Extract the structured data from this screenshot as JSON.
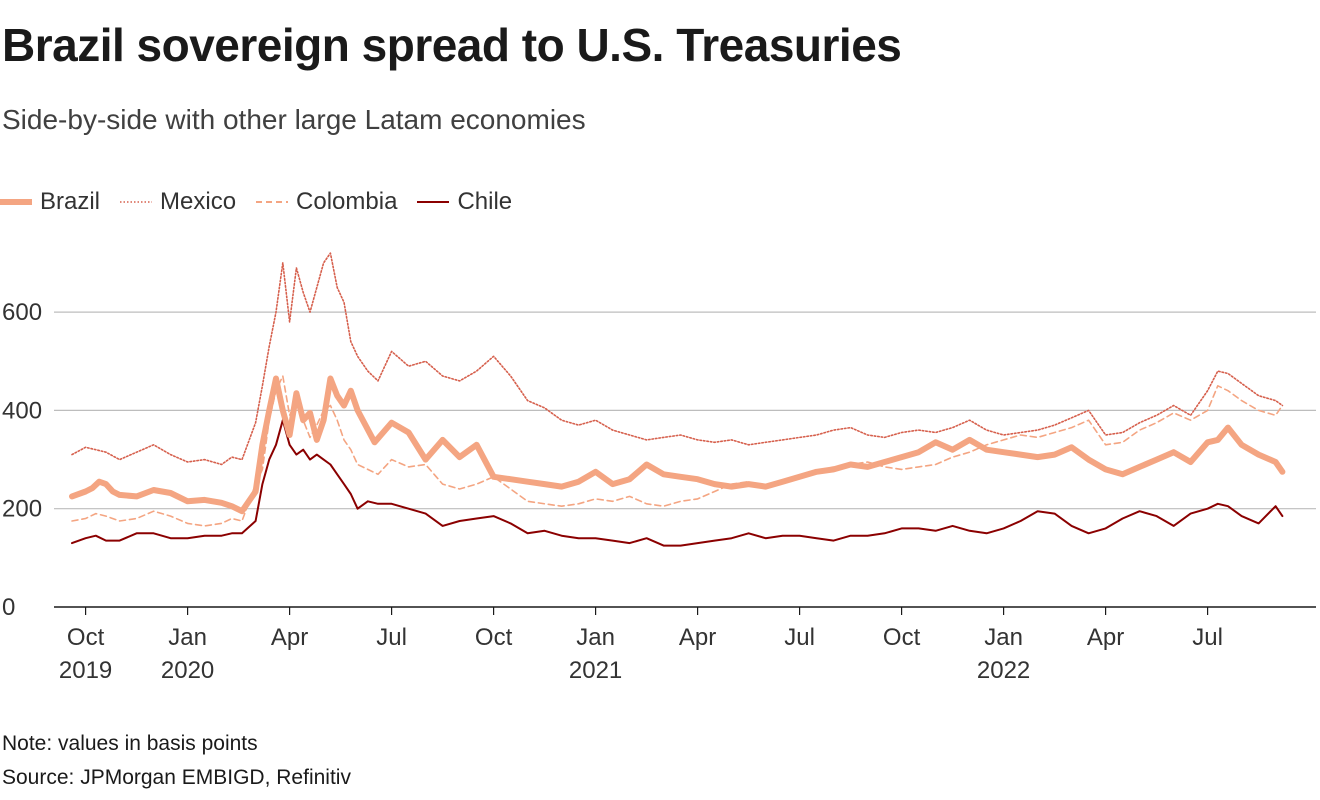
{
  "chart_data": {
    "type": "line",
    "title": "Brazil sovereign spread to U.S. Treasuries",
    "subtitle": "Side-by-side with other large Latam economies",
    "xlabel": "",
    "ylabel": "",
    "ylim": [
      0,
      700
    ],
    "yticks": [
      0,
      200,
      400,
      600
    ],
    "grid": true,
    "legend_position": "top-left",
    "x_ticks": [
      {
        "t": 0,
        "month": "Oct",
        "year": "2019"
      },
      {
        "t": 3,
        "month": "Jan",
        "year": "2020"
      },
      {
        "t": 6,
        "month": "Apr",
        "year": ""
      },
      {
        "t": 9,
        "month": "Jul",
        "year": ""
      },
      {
        "t": 12,
        "month": "Oct",
        "year": ""
      },
      {
        "t": 15,
        "month": "Jan",
        "year": "2021"
      },
      {
        "t": 18,
        "month": "Apr",
        "year": ""
      },
      {
        "t": 21,
        "month": "Jul",
        "year": ""
      },
      {
        "t": 24,
        "month": "Oct",
        "year": ""
      },
      {
        "t": 27,
        "month": "Jan",
        "year": "2022"
      },
      {
        "t": 30,
        "month": "Apr",
        "year": ""
      },
      {
        "t": 33,
        "month": "Jul",
        "year": ""
      }
    ],
    "x_unit": "months since Oct 2019",
    "x_range": [
      -0.4,
      35.6
    ],
    "series": [
      {
        "name": "Brazil",
        "color": "#f4a582",
        "style": "thick",
        "x": [
          -0.4,
          0,
          0.2,
          0.4,
          0.6,
          0.8,
          1,
          1.5,
          2,
          2.5,
          3,
          3.5,
          4,
          4.3,
          4.6,
          4.8,
          5,
          5.2,
          5.4,
          5.6,
          5.8,
          6,
          6.2,
          6.4,
          6.6,
          6.8,
          7,
          7.2,
          7.4,
          7.6,
          7.8,
          8,
          8.5,
          9,
          9.5,
          10,
          10.5,
          11,
          11.5,
          12,
          12.5,
          13,
          13.5,
          14,
          14.5,
          15,
          15.5,
          16,
          16.5,
          17,
          17.5,
          18,
          18.5,
          19,
          19.5,
          20,
          20.5,
          21,
          21.5,
          22,
          22.5,
          23,
          23.5,
          24,
          24.5,
          25,
          25.5,
          26,
          26.5,
          27,
          27.5,
          28,
          28.5,
          29,
          29.5,
          30,
          30.5,
          31,
          31.5,
          32,
          32.5,
          33,
          33.3,
          33.6,
          34,
          34.5,
          35,
          35.2
        ],
        "values": [
          225,
          235,
          242,
          255,
          250,
          235,
          228,
          225,
          238,
          232,
          215,
          218,
          212,
          205,
          195,
          215,
          235,
          330,
          400,
          465,
          400,
          350,
          435,
          380,
          395,
          340,
          380,
          465,
          430,
          410,
          440,
          400,
          335,
          375,
          355,
          300,
          340,
          305,
          330,
          265,
          260,
          255,
          250,
          245,
          255,
          275,
          250,
          260,
          290,
          270,
          265,
          260,
          250,
          245,
          250,
          245,
          255,
          265,
          275,
          280,
          290,
          285,
          295,
          305,
          315,
          335,
          320,
          340,
          320,
          315,
          310,
          305,
          310,
          325,
          300,
          280,
          270,
          285,
          300,
          315,
          295,
          335,
          340,
          365,
          330,
          310,
          295,
          275
        ]
      },
      {
        "name": "Mexico",
        "color": "#d6604d",
        "style": "dotted",
        "x": [
          -0.4,
          0,
          0.3,
          0.6,
          1,
          1.5,
          2,
          2.5,
          3,
          3.5,
          4,
          4.3,
          4.6,
          5,
          5.2,
          5.4,
          5.6,
          5.8,
          6,
          6.2,
          6.4,
          6.6,
          6.8,
          7,
          7.2,
          7.4,
          7.6,
          7.8,
          8,
          8.3,
          8.6,
          9,
          9.5,
          10,
          10.5,
          11,
          11.5,
          12,
          12.5,
          13,
          13.5,
          14,
          14.5,
          15,
          15.5,
          16,
          16.5,
          17,
          17.5,
          18,
          18.5,
          19,
          19.5,
          20,
          20.5,
          21,
          21.5,
          22,
          22.5,
          23,
          23.5,
          24,
          24.5,
          25,
          25.5,
          26,
          26.5,
          27,
          27.5,
          28,
          28.5,
          29,
          29.5,
          30,
          30.5,
          31,
          31.5,
          32,
          32.5,
          33,
          33.3,
          33.6,
          34,
          34.5,
          35,
          35.2
        ],
        "values": [
          310,
          325,
          320,
          315,
          300,
          315,
          330,
          310,
          295,
          300,
          290,
          305,
          300,
          375,
          450,
          530,
          600,
          700,
          580,
          690,
          640,
          600,
          650,
          700,
          720,
          650,
          620,
          540,
          510,
          480,
          460,
          520,
          490,
          500,
          470,
          460,
          480,
          510,
          470,
          420,
          405,
          380,
          370,
          380,
          360,
          350,
          340,
          345,
          350,
          340,
          335,
          340,
          330,
          335,
          340,
          345,
          350,
          360,
          365,
          350,
          345,
          355,
          360,
          355,
          365,
          380,
          360,
          350,
          355,
          360,
          370,
          385,
          400,
          350,
          355,
          375,
          390,
          410,
          390,
          440,
          480,
          475,
          455,
          430,
          420,
          410
        ]
      },
      {
        "name": "Colombia",
        "color": "#f4a582",
        "style": "dashed",
        "x": [
          -0.4,
          0,
          0.3,
          0.6,
          1,
          1.5,
          2,
          2.5,
          3,
          3.5,
          4,
          4.3,
          4.6,
          5,
          5.2,
          5.4,
          5.6,
          5.8,
          6,
          6.2,
          6.4,
          6.6,
          6.8,
          7,
          7.2,
          7.4,
          7.6,
          7.8,
          8,
          8.3,
          8.6,
          9,
          9.5,
          10,
          10.5,
          11,
          11.5,
          12,
          12.5,
          13,
          13.5,
          14,
          14.5,
          15,
          15.5,
          16,
          16.5,
          17,
          17.5,
          18,
          18.5,
          19,
          19.5,
          20,
          20.5,
          21,
          21.5,
          22,
          22.5,
          23,
          23.5,
          24,
          24.5,
          25,
          25.5,
          26,
          26.5,
          27,
          27.5,
          28,
          28.5,
          29,
          29.5,
          30,
          30.5,
          31,
          31.5,
          32,
          32.5,
          33,
          33.3,
          33.6,
          34,
          34.5,
          35,
          35.2
        ],
        "values": [
          175,
          180,
          190,
          185,
          175,
          180,
          195,
          185,
          170,
          165,
          170,
          180,
          175,
          250,
          280,
          380,
          440,
          470,
          390,
          420,
          380,
          345,
          370,
          400,
          410,
          380,
          340,
          320,
          290,
          280,
          270,
          300,
          285,
          290,
          250,
          240,
          250,
          265,
          240,
          215,
          210,
          205,
          210,
          220,
          215,
          225,
          210,
          205,
          215,
          220,
          235,
          250,
          255,
          245,
          255,
          265,
          275,
          285,
          290,
          295,
          285,
          280,
          285,
          290,
          305,
          315,
          330,
          340,
          350,
          345,
          355,
          365,
          380,
          330,
          335,
          360,
          375,
          395,
          380,
          400,
          450,
          440,
          420,
          400,
          390,
          410
        ]
      },
      {
        "name": "Chile",
        "color": "#8b0000",
        "style": "solid",
        "x": [
          -0.4,
          0,
          0.3,
          0.6,
          1,
          1.5,
          2,
          2.5,
          3,
          3.5,
          4,
          4.3,
          4.6,
          5,
          5.2,
          5.4,
          5.6,
          5.8,
          6,
          6.2,
          6.4,
          6.6,
          6.8,
          7,
          7.2,
          7.4,
          7.6,
          7.8,
          8,
          8.3,
          8.6,
          9,
          9.5,
          10,
          10.5,
          11,
          11.5,
          12,
          12.5,
          13,
          13.5,
          14,
          14.5,
          15,
          15.5,
          16,
          16.5,
          17,
          17.5,
          18,
          18.5,
          19,
          19.5,
          20,
          20.5,
          21,
          21.5,
          22,
          22.5,
          23,
          23.5,
          24,
          24.5,
          25,
          25.5,
          26,
          26.5,
          27,
          27.5,
          28,
          28.5,
          29,
          29.5,
          30,
          30.5,
          31,
          31.5,
          32,
          32.5,
          33,
          33.3,
          33.6,
          34,
          34.5,
          35,
          35.2
        ],
        "values": [
          130,
          140,
          145,
          135,
          135,
          150,
          150,
          140,
          140,
          145,
          145,
          150,
          150,
          175,
          250,
          300,
          330,
          380,
          330,
          310,
          320,
          300,
          310,
          300,
          290,
          270,
          250,
          230,
          200,
          215,
          210,
          210,
          200,
          190,
          165,
          175,
          180,
          185,
          170,
          150,
          155,
          145,
          140,
          140,
          135,
          130,
          140,
          125,
          125,
          130,
          135,
          140,
          150,
          140,
          145,
          145,
          140,
          135,
          145,
          145,
          150,
          160,
          160,
          155,
          165,
          155,
          150,
          160,
          175,
          195,
          190,
          165,
          150,
          160,
          180,
          195,
          185,
          165,
          190,
          200,
          210,
          205,
          185,
          170,
          205,
          185
        ]
      }
    ]
  },
  "legend": {
    "items": [
      {
        "label": "Brazil",
        "icon": "thick-solid-line"
      },
      {
        "label": "Mexico",
        "icon": "dotted-line"
      },
      {
        "label": "Colombia",
        "icon": "dashed-line"
      },
      {
        "label": "Chile",
        "icon": "solid-line"
      }
    ]
  },
  "footer": {
    "note": "Note: values in basis points",
    "source": "Source: JPMorgan EMBIGD, Refinitiv"
  }
}
